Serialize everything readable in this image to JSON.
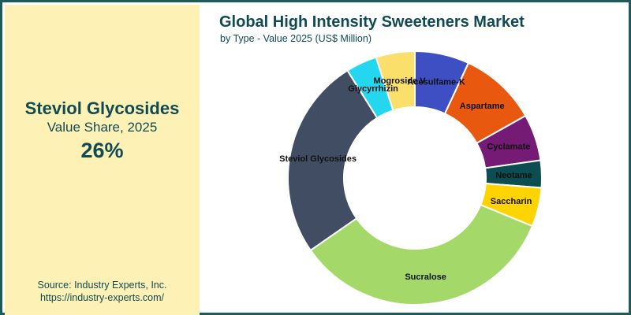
{
  "panel": {
    "highlight_label": "Steviol Glycosides",
    "highlight_caption": "Value Share, 2025",
    "highlight_value": "26%",
    "source": "Source: Industry Experts, Inc.",
    "url": "https://industry-experts.com/"
  },
  "chart_data": {
    "type": "pie",
    "title": "Global High Intensity Sweeteners Market",
    "subtitle": "by Type - Value 2025 (US$ Million)",
    "donut": true,
    "categories": [
      "Acesulfame-K",
      "Aspartame",
      "Cyclamate",
      "Neotame",
      "Saccharin",
      "Sucralose",
      "Steviol Glycosides",
      "Glycyrrhizin",
      "Mogroside V"
    ],
    "values": [
      7,
      10,
      6,
      3.5,
      5,
      34.5,
      26,
      4,
      5
    ],
    "colors": [
      "#3e4fc4",
      "#e8580f",
      "#751a75",
      "#0b4d50",
      "#fdd300",
      "#a4d96a",
      "#404d63",
      "#24d7ee",
      "#fbdf6b"
    ]
  }
}
